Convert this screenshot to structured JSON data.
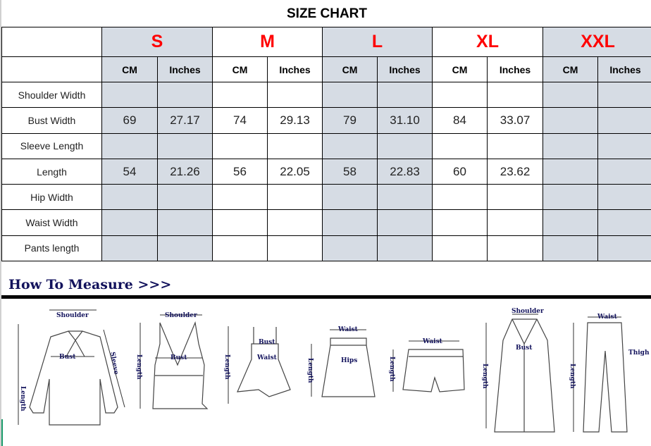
{
  "title": "SIZE CHART",
  "sizes": [
    "S",
    "M",
    "L",
    "XL",
    "XXL"
  ],
  "units": {
    "cm": "CM",
    "inches": "Inches"
  },
  "rows": [
    {
      "label": "Shoulder Width",
      "values": [
        "",
        "",
        "",
        "",
        "",
        "",
        "",
        "",
        "",
        ""
      ]
    },
    {
      "label": "Bust Width",
      "values": [
        "69",
        "27.17",
        "74",
        "29.13",
        "79",
        "31.10",
        "84",
        "33.07",
        "",
        ""
      ]
    },
    {
      "label": "Sleeve Length",
      "values": [
        "",
        "",
        "",
        "",
        "",
        "",
        "",
        "",
        "",
        ""
      ]
    },
    {
      "label": "Length",
      "values": [
        "54",
        "21.26",
        "56",
        "22.05",
        "58",
        "22.83",
        "60",
        "23.62",
        "",
        ""
      ]
    },
    {
      "label": "Hip Width",
      "values": [
        "",
        "",
        "",
        "",
        "",
        "",
        "",
        "",
        "",
        ""
      ]
    },
    {
      "label": "Waist Width",
      "values": [
        "",
        "",
        "",
        "",
        "",
        "",
        "",
        "",
        "",
        ""
      ]
    },
    {
      "label": "Pants length",
      "values": [
        "",
        "",
        "",
        "",
        "",
        "",
        "",
        "",
        "",
        ""
      ]
    }
  ],
  "colors": {
    "size_label": "#ff0000",
    "shaded_column": "#d6dce4",
    "heading": "#12125c"
  },
  "how_to_measure": {
    "heading": "How To Measure >>>",
    "labels": {
      "shoulder": "Shoulder",
      "bust": "Bust",
      "length": "Length",
      "sleeve": "Sleeve",
      "waist": "Waist",
      "hips": "Hips",
      "thigh": "Thigh"
    }
  }
}
